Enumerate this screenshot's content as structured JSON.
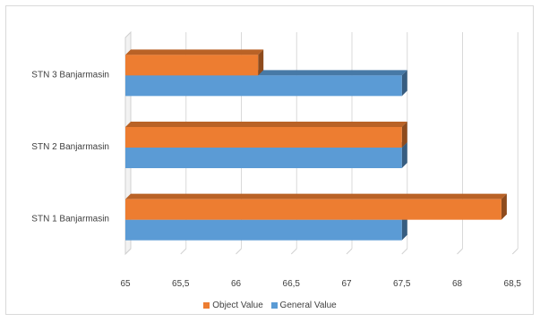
{
  "chart_data": {
    "type": "bar",
    "orientation": "horizontal",
    "categories": [
      "STN 1 Banjarmasin",
      "STN 2 Banjarmasin",
      "STN 3 Banjarmasin"
    ],
    "series": [
      {
        "name": "General Value",
        "values": [
          67.5,
          67.5,
          67.5
        ],
        "color": "#5b9bd5"
      },
      {
        "name": "Object Value",
        "values": [
          68.4,
          67.5,
          66.2
        ],
        "color": "#ed7d31"
      }
    ],
    "x_ticks": [
      "65",
      "65,5",
      "66",
      "66,5",
      "67",
      "67,5",
      "68",
      "68,5"
    ],
    "xlim": [
      65,
      68.7
    ],
    "grid": true,
    "legend_position": "bottom",
    "title": "",
    "xlabel": "",
    "ylabel": ""
  },
  "legend": {
    "object_label": "Object Value",
    "general_label": "General Value"
  }
}
